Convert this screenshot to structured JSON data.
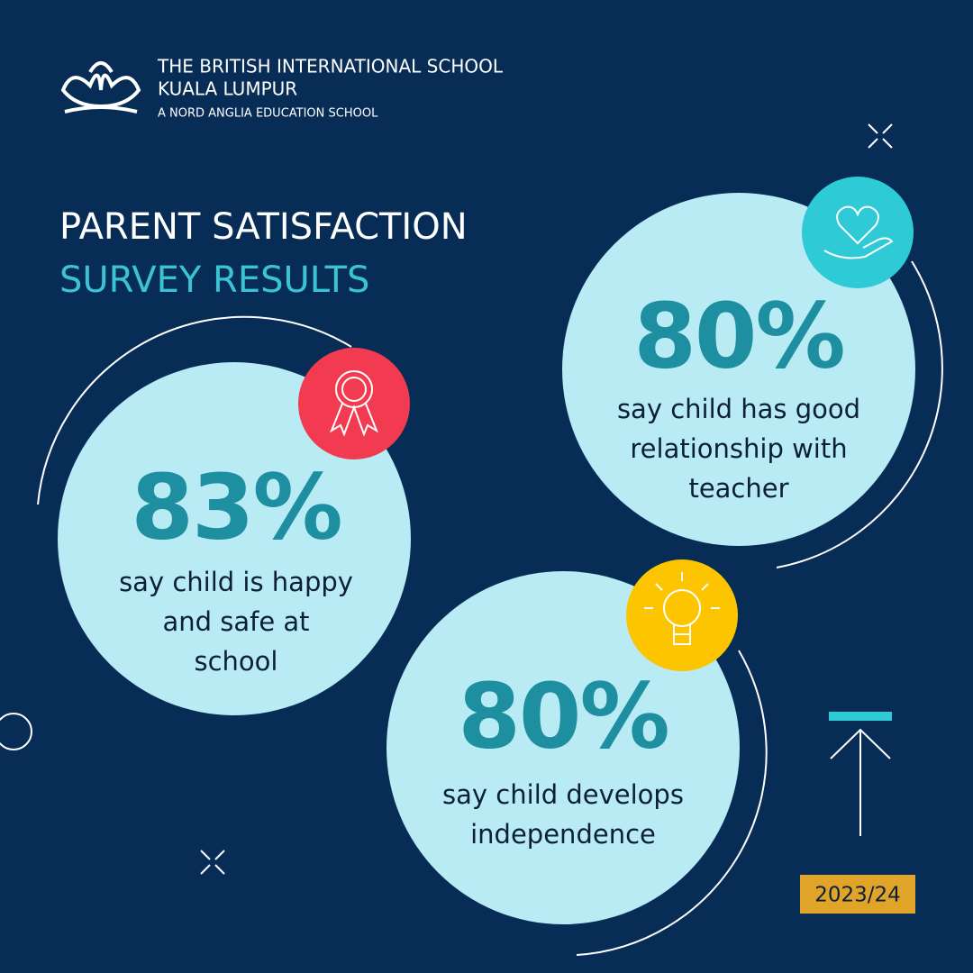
{
  "header": {
    "school": [
      "THE BRITISH INTERNATIONAL SCHOOL",
      "KUALA LUMPUR"
    ],
    "tagline": "A NORD ANGLIA EDUCATION SCHOOL"
  },
  "title": {
    "line1": "PARENT SATISFACTION",
    "line2": "SURVEY RESULTS"
  },
  "stats": [
    {
      "figure": "83%",
      "caption": [
        "say child is happy",
        "and safe at",
        "school"
      ]
    },
    {
      "figure": "80%",
      "caption": [
        "say child has good",
        "relationship with",
        "teacher"
      ]
    },
    {
      "figure": "80%",
      "caption": [
        "say child develops",
        "independence"
      ]
    }
  ],
  "year": "2023/24"
}
